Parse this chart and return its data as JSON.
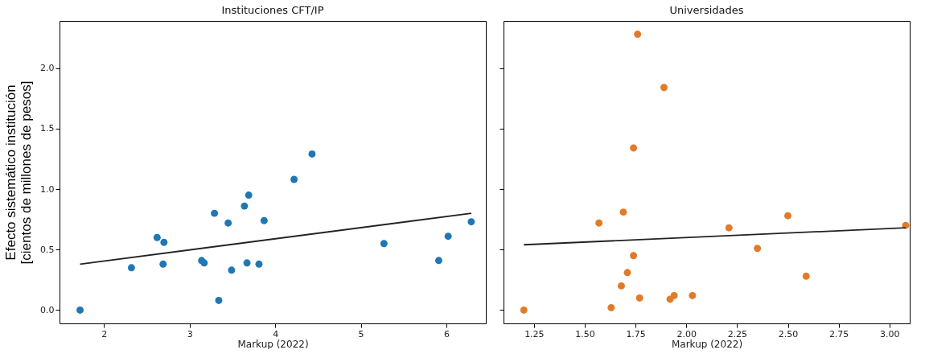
{
  "chart_data": [
    {
      "type": "scatter",
      "title": "Instituciones CFT/IP",
      "xlabel": "Markup (2022)",
      "ylabel": "Efecto sistemático institución\n[cientos de millones de pesos]",
      "xlim": [
        1.48,
        6.46
      ],
      "xticks": [
        2,
        3,
        4,
        5,
        6
      ],
      "ylim": [
        -0.11,
        2.39
      ],
      "yticks": [
        {
          "value": 0,
          "label": "0.0"
        },
        0.5,
        {
          "value": 1,
          "label": "1.0"
        },
        1.5,
        {
          "value": 2,
          "label": "2.0"
        }
      ],
      "grid": false,
      "series": [
        {
          "type": "scatter",
          "marker": "circle",
          "color": "#1f77b4",
          "x": [
            1.72,
            2.32,
            2.62,
            2.7,
            2.69,
            3.14,
            3.17,
            3.29,
            3.34,
            3.45,
            3.49,
            3.64,
            3.67,
            3.69,
            3.81,
            3.87,
            4.22,
            4.43,
            5.27,
            5.91,
            6.02,
            6.29
          ],
          "values": [
            0.0,
            0.35,
            0.6,
            0.56,
            0.38,
            0.41,
            0.39,
            0.8,
            0.08,
            0.72,
            0.33,
            0.86,
            0.39,
            0.95,
            0.38,
            0.74,
            1.08,
            1.29,
            0.55,
            0.41,
            0.61,
            0.73
          ]
        },
        {
          "type": "line",
          "color": "#222222",
          "x": [
            1.72,
            6.29
          ],
          "values": [
            0.38,
            0.8
          ]
        }
      ]
    },
    {
      "type": "scatter",
      "title": "Universidades",
      "xlabel": "Markup (2022)",
      "xlim": [
        1.1,
        3.1
      ],
      "xticks": [
        1.25,
        {
          "value": 1.5,
          "label": "1.50"
        },
        1.75,
        {
          "value": 2,
          "label": "2.00"
        },
        2.25,
        {
          "value": 2.5,
          "label": "2.50"
        },
        2.75,
        {
          "value": 3,
          "label": "3.00"
        }
      ],
      "ylim": [
        -0.11,
        2.39
      ],
      "yticks": [
        {
          "value": 0,
          "label": null
        },
        {
          "value": 0.5,
          "label": null
        },
        {
          "value": 1,
          "label": null
        },
        {
          "value": 1.5,
          "label": null
        },
        {
          "value": 2,
          "label": null
        }
      ],
      "tick_labels": "x",
      "grid": false,
      "series": [
        {
          "type": "scatter",
          "marker": "circle",
          "color": "#e07b2a",
          "x": [
            1.2,
            1.57,
            1.63,
            1.68,
            1.69,
            1.71,
            1.74,
            1.74,
            1.76,
            1.77,
            1.89,
            1.92,
            1.94,
            2.03,
            2.21,
            2.35,
            2.5,
            2.59,
            3.08
          ],
          "values": [
            0.0,
            0.72,
            0.02,
            0.2,
            0.81,
            0.31,
            0.45,
            1.34,
            2.28,
            0.1,
            1.84,
            0.09,
            0.12,
            0.12,
            0.68,
            0.51,
            0.78,
            0.28,
            0.7
          ]
        },
        {
          "type": "line",
          "color": "#222222",
          "x": [
            1.2,
            3.08
          ],
          "values": [
            0.54,
            0.68
          ]
        }
      ]
    }
  ]
}
